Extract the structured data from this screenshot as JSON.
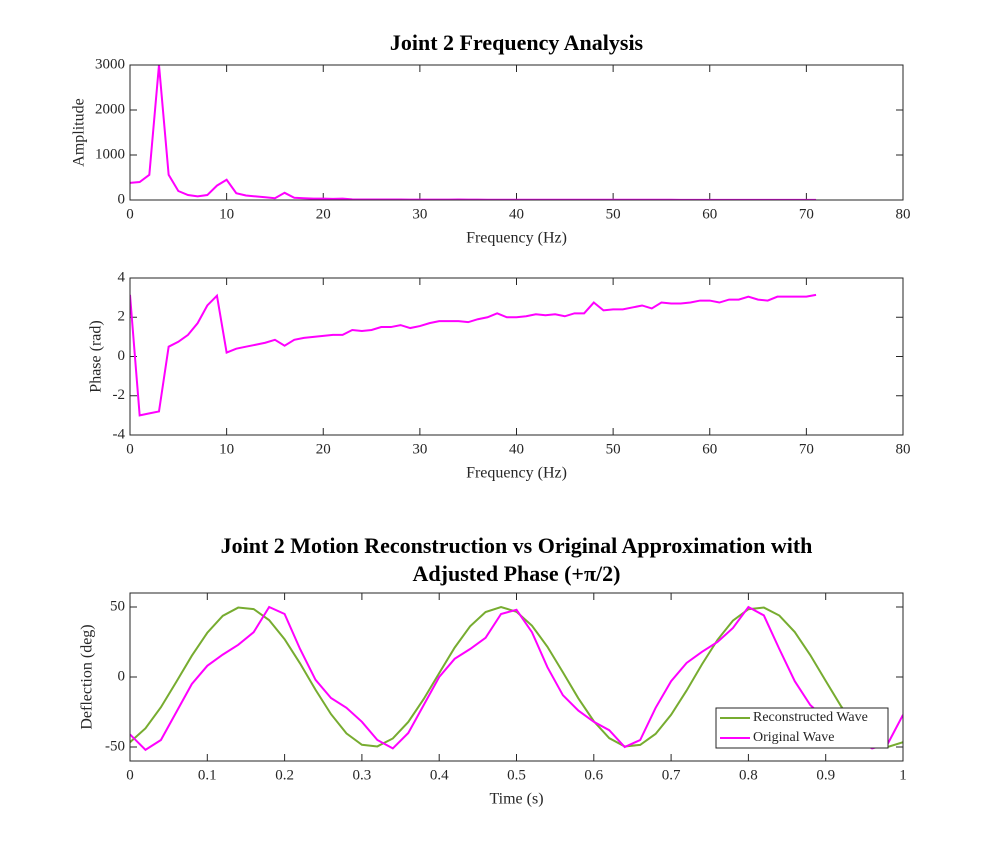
{
  "chart_data": [
    {
      "type": "line",
      "title": [
        "Joint 2 Frequency Analysis"
      ],
      "xlabel": "Frequency (Hz)",
      "ylabel": "Amplitude",
      "x": [
        0,
        1,
        2,
        3,
        4,
        5,
        6,
        7,
        8,
        9,
        10,
        11,
        12,
        13,
        14,
        15,
        16,
        17,
        18,
        19,
        20,
        21,
        22,
        23,
        24,
        25,
        26,
        27,
        28,
        29,
        30,
        31,
        32,
        33,
        34,
        35,
        36,
        37,
        38,
        39,
        40,
        41,
        42,
        43,
        44,
        45,
        46,
        47,
        48,
        49,
        50,
        51,
        52,
        53,
        54,
        55,
        56,
        57,
        58,
        59,
        60,
        61,
        62,
        63,
        64,
        65,
        66,
        67,
        68,
        69,
        70,
        71
      ],
      "series": [
        {
          "name": "Amplitude",
          "color": "#ff00ff",
          "values": [
            380,
            400,
            560,
            3000,
            560,
            200,
            110,
            80,
            110,
            320,
            450,
            150,
            100,
            80,
            60,
            40,
            160,
            50,
            40,
            30,
            30,
            25,
            30,
            15,
            12,
            12,
            10,
            10,
            10,
            8,
            8,
            8,
            8,
            8,
            10,
            8,
            8,
            6,
            6,
            6,
            6,
            6,
            6,
            5,
            5,
            5,
            5,
            5,
            5,
            5,
            5,
            5,
            5,
            5,
            5,
            5,
            5,
            4,
            4,
            4,
            4,
            4,
            4,
            4,
            4,
            4,
            4,
            4,
            4,
            4,
            4,
            4
          ]
        }
      ],
      "xlim": [
        0,
        80
      ],
      "ylim": [
        0,
        3000
      ],
      "xticks": [
        0,
        10,
        20,
        30,
        40,
        50,
        60,
        70,
        80
      ],
      "yticks": [
        0,
        1000,
        2000,
        3000
      ]
    },
    {
      "type": "line",
      "xlabel": "Frequency (Hz)",
      "ylabel": "Phase (rad)",
      "x": [
        0,
        1,
        2,
        3,
        4,
        5,
        6,
        7,
        8,
        9,
        10,
        11,
        12,
        13,
        14,
        15,
        16,
        17,
        18,
        19,
        20,
        21,
        22,
        23,
        24,
        25,
        26,
        27,
        28,
        29,
        30,
        31,
        32,
        33,
        34,
        35,
        36,
        37,
        38,
        39,
        40,
        41,
        42,
        43,
        44,
        45,
        46,
        47,
        48,
        49,
        50,
        51,
        52,
        53,
        54,
        55,
        56,
        57,
        58,
        59,
        60,
        61,
        62,
        63,
        64,
        65,
        66,
        67,
        68,
        69,
        70,
        71
      ],
      "series": [
        {
          "name": "Phase",
          "color": "#ff00ff",
          "values": [
            3.14,
            -3.0,
            -2.9,
            -2.8,
            0.5,
            0.75,
            1.1,
            1.7,
            2.6,
            3.1,
            0.2,
            0.4,
            0.5,
            0.6,
            0.7,
            0.85,
            0.55,
            0.85,
            0.95,
            1.0,
            1.05,
            1.1,
            1.1,
            1.35,
            1.3,
            1.35,
            1.5,
            1.5,
            1.6,
            1.45,
            1.55,
            1.7,
            1.8,
            1.8,
            1.8,
            1.75,
            1.9,
            2.0,
            2.2,
            2.0,
            2.0,
            2.05,
            2.15,
            2.1,
            2.15,
            2.05,
            2.2,
            2.2,
            2.75,
            2.35,
            2.4,
            2.4,
            2.5,
            2.6,
            2.45,
            2.75,
            2.7,
            2.7,
            2.75,
            2.85,
            2.85,
            2.75,
            2.9,
            2.9,
            3.05,
            2.9,
            2.85,
            3.05,
            3.05,
            3.05,
            3.05,
            3.14
          ]
        }
      ],
      "xlim": [
        0,
        80
      ],
      "ylim": [
        -4,
        4
      ],
      "xticks": [
        0,
        10,
        20,
        30,
        40,
        50,
        60,
        70,
        80
      ],
      "yticks": [
        -4,
        -2,
        0,
        2,
        4
      ]
    },
    {
      "type": "line",
      "title": [
        "Joint 2 Motion Reconstruction vs Original Approximation with",
        "Adjusted Phase (+π/2)"
      ],
      "xlabel": "Time (s)",
      "ylabel": "Deflection (deg)",
      "x": [
        0,
        0.02,
        0.04,
        0.06,
        0.08,
        0.1,
        0.12,
        0.14,
        0.16,
        0.18,
        0.2,
        0.22,
        0.24,
        0.26,
        0.28,
        0.3,
        0.32,
        0.34,
        0.36,
        0.38,
        0.4,
        0.42,
        0.44,
        0.46,
        0.48,
        0.5,
        0.52,
        0.54,
        0.56,
        0.58,
        0.6,
        0.62,
        0.64,
        0.66,
        0.68,
        0.7,
        0.72,
        0.74,
        0.76,
        0.78,
        0.8,
        0.82,
        0.84,
        0.86,
        0.88,
        0.9,
        0.92,
        0.94,
        0.96,
        0.98,
        1
      ],
      "series": [
        {
          "name": "Reconstructed Wave",
          "color": "#77ac30",
          "values": [
            -46.6,
            -36.7,
            -21.6,
            -3.4,
            15.2,
            31.6,
            43.7,
            49.6,
            48.5,
            40.6,
            27.0,
            9.7,
            -9.1,
            -26.5,
            -40.3,
            -48.4,
            -49.6,
            -43.9,
            -32.1,
            -15.7,
            2.8,
            21.0,
            36.2,
            46.4,
            50.0,
            46.6,
            36.7,
            21.6,
            3.4,
            -15.2,
            -31.6,
            -43.7,
            -49.6,
            -48.5,
            -40.6,
            -27.0,
            -9.7,
            9.1,
            26.5,
            40.3,
            48.4,
            49.6,
            43.9,
            32.1,
            15.7,
            -2.8,
            -21.0,
            -36.2,
            -46.4,
            -50.0,
            -46.6
          ]
        },
        {
          "name": "Original Wave",
          "color": "#ff00ff",
          "values": [
            -41,
            -52,
            -45,
            -25,
            -5,
            8,
            16,
            23,
            32,
            50,
            45,
            20,
            -2,
            -15,
            -22,
            -32,
            -45,
            -51,
            -40,
            -20,
            0,
            13,
            20,
            28,
            45,
            48,
            32,
            7,
            -13,
            -24,
            -32,
            -38,
            -50,
            -45,
            -22,
            -3,
            10,
            18,
            25,
            35,
            50,
            44,
            20,
            -3,
            -20,
            -30,
            -38,
            -45,
            -51,
            -48,
            -27
          ]
        }
      ],
      "xlim": [
        0,
        1
      ],
      "ylim": [
        -60,
        60
      ],
      "xticks": [
        0,
        0.1,
        0.2,
        0.3,
        0.4,
        0.5,
        0.6,
        0.7,
        0.8,
        0.9,
        1
      ],
      "yticks": [
        -50,
        0,
        50
      ],
      "legend": "lower right"
    }
  ]
}
